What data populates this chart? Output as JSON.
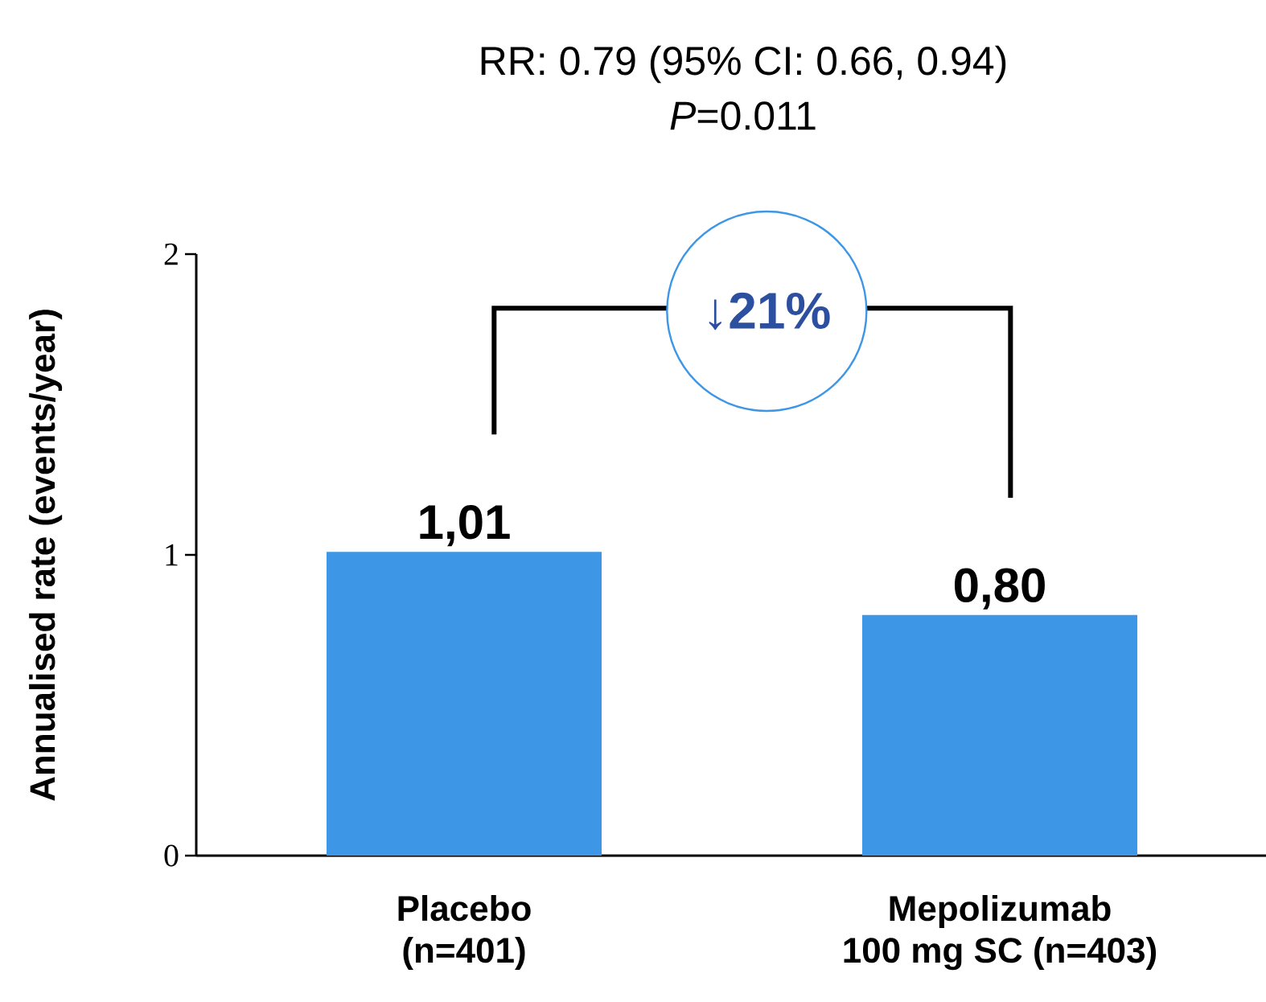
{
  "chart_data": {
    "type": "bar",
    "title": "RR: 0.79 (95% CI: 0.66, 0.94)",
    "subtitle": "*P*=0.011",
    "ylabel": "Annualised rate (events/year)",
    "categories": [
      "Placebo\n(n=401)",
      "Mepolizumab\n100 mg SC (n=403)"
    ],
    "values": [
      1.01,
      0.8
    ],
    "value_labels": [
      "1,01",
      "0,80"
    ],
    "color": "#3d97e6",
    "ylim": [
      0,
      2
    ],
    "yticks": [
      0,
      1,
      2
    ],
    "annotations": [
      "↓21%"
    ]
  }
}
